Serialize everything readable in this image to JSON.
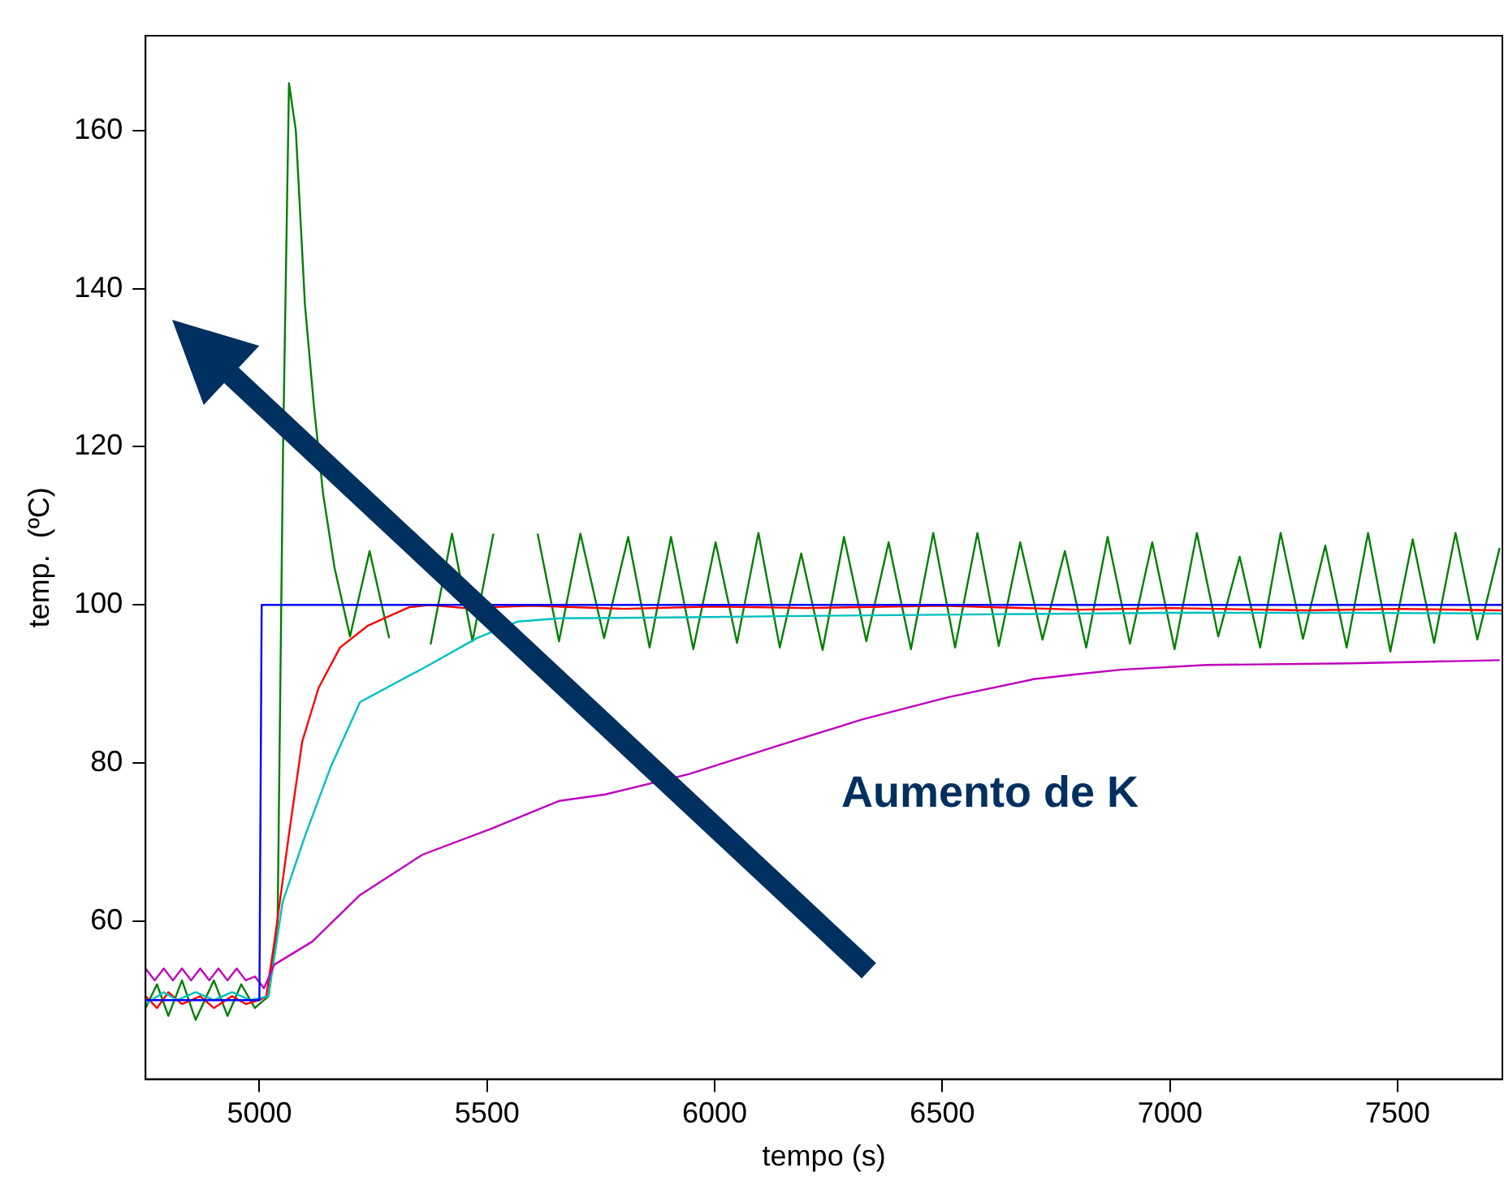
{
  "chart_data": {
    "type": "line",
    "xlabel": "tempo (s)",
    "ylabel": "temp.  (ºC)",
    "xlim": [
      4750,
      7730
    ],
    "ylim": [
      40,
      172
    ],
    "xticks": [
      5000,
      5500,
      6000,
      6500,
      7000,
      7500
    ],
    "yticks": [
      60,
      80,
      100,
      120,
      140,
      160
    ],
    "grid": false,
    "legend": false,
    "marker": "none",
    "line_style": "solid",
    "annotations": [
      "Aumento de K"
    ],
    "series": [
      {
        "color": "#0000ff",
        "x": [
          4750,
          5000,
          5005,
          7730
        ],
        "values": [
          50,
          50,
          100,
          100
        ]
      },
      {
        "color": "#bf00bf",
        "x": [
          4750,
          4770,
          4790,
          4810,
          4830,
          4850,
          4870,
          4890,
          4910,
          4930,
          4950,
          4970,
          4990,
          5010,
          5033,
          5116,
          5221,
          5358,
          5510,
          5658,
          5758,
          5944,
          6134,
          6324,
          6512,
          6700,
          6791,
          6892,
          7080,
          7395,
          7724
        ],
        "values": [
          54,
          52.5,
          54,
          52.5,
          54,
          52.5,
          54,
          52.5,
          54,
          52.5,
          54,
          52.5,
          53,
          51.5,
          54.5,
          57.4,
          63.3,
          68.4,
          71.7,
          75.2,
          76,
          78.6,
          82.1,
          85.5,
          88.3,
          90.6,
          91.2,
          91.8,
          92.4,
          92.6,
          93
        ]
      },
      {
        "color": "#00bfbf",
        "x": [
          4750,
          4790,
          4820,
          4860,
          4900,
          4940,
          4980,
          5020,
          5051,
          5101,
          5156,
          5221,
          5373,
          5478,
          5568,
          5660,
          5900,
          6200,
          6600,
          7000,
          7400,
          7730
        ],
        "values": [
          49.5,
          51,
          50,
          51,
          50,
          51,
          50,
          50.5,
          62.4,
          70.9,
          79.4,
          87.7,
          92.4,
          95.8,
          97.9,
          98.3,
          98.4,
          98.6,
          98.8,
          99,
          99,
          98.9
        ]
      },
      {
        "color": "#ff0000",
        "x": [
          4750,
          4775,
          4800,
          4830,
          4870,
          4900,
          4940,
          4970,
          5000,
          5015,
          5033,
          5065,
          5094,
          5130,
          5177,
          5239,
          5329,
          5373,
          5450,
          5600,
          5800,
          6000,
          6200,
          6500,
          6800,
          7000,
          7300,
          7500,
          7730
        ],
        "values": [
          50.5,
          49,
          51,
          49.5,
          50.5,
          49,
          50.5,
          49.5,
          50,
          50.5,
          57.4,
          71,
          82.7,
          89.5,
          94.6,
          97.4,
          99.7,
          100,
          99.6,
          99.9,
          99.5,
          99.8,
          99.6,
          99.9,
          99.4,
          99.6,
          99.3,
          99.5,
          99.3
        ]
      },
      {
        "color": "#008000",
        "x": [
          4750,
          4775,
          4800,
          4830,
          4860,
          4900,
          4930,
          4960,
          4990,
          5020,
          5040,
          5052,
          5065,
          5080,
          5100,
          5120,
          5140,
          5165,
          5199,
          5242,
          5285,
          5329,
          5376,
          5423,
          5468,
          5514,
          5562,
          5611,
          5658,
          5705,
          5757,
          5810,
          5857,
          5904,
          5953,
          6002,
          6049,
          6096,
          6143,
          6190,
          6237,
          6284,
          6333,
          6382,
          6431,
          6480,
          6528,
          6577,
          6624,
          6671,
          6720,
          6769,
          6816,
          6863,
          6912,
          6961,
          7010,
          7059,
          7106,
          7153,
          7198,
          7243,
          7292,
          7341,
          7388,
          7435,
          7484,
          7533,
          7580,
          7627,
          7675,
          7724
        ],
        "values": [
          49,
          52,
          48,
          52.5,
          47.5,
          52.5,
          48,
          52,
          49,
          50.5,
          60,
          120,
          166,
          160,
          138,
          125,
          114,
          104.7,
          96,
          106.8,
          95.8,
          null,
          95,
          109,
          95.4,
          109,
          null,
          109,
          95.4,
          109,
          95.8,
          108.6,
          94.6,
          108.6,
          94.4,
          107.9,
          95.2,
          109.1,
          94.6,
          106.5,
          94.3,
          108.6,
          95.4,
          107.9,
          94.4,
          109.1,
          94.6,
          109.1,
          94.8,
          107.9,
          95.6,
          106.8,
          94.6,
          108.6,
          95.1,
          107.9,
          94.4,
          109.1,
          96,
          106.1,
          94.6,
          109.1,
          95.7,
          107.5,
          94.6,
          109.1,
          94.1,
          108.3,
          95.2,
          109.1,
          95.6,
          107.2
        ]
      }
    ]
  }
}
